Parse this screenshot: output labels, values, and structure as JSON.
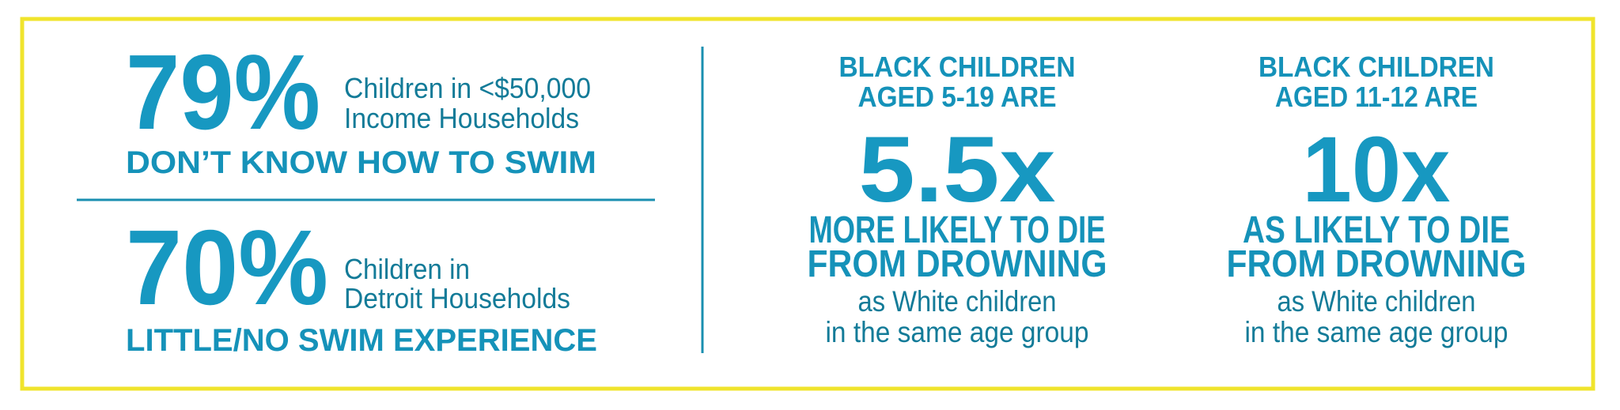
{
  "left": [
    {
      "stat": "79%",
      "description": [
        "Children in <$50,000",
        "Income Households"
      ],
      "caption": "DON’T KNOW HOW TO SWIM"
    },
    {
      "stat": "70%",
      "description": [
        "Children in",
        "Detroit Households"
      ],
      "caption": "LITTLE/NO SWIM EXPERIENCE"
    }
  ],
  "right": [
    {
      "header": [
        "BLACK CHILDREN",
        "AGED 5-19 ARE"
      ],
      "stat": "5.5x",
      "comparison": [
        "MORE LIKELY TO DIE",
        "FROM DROWNING"
      ],
      "note": [
        "as White children",
        "in the same age group"
      ]
    },
    {
      "header": [
        "BLACK CHILDREN",
        "AGED 11-12 ARE"
      ],
      "stat": "10x",
      "comparison": [
        "AS LIKELY TO DIE",
        "FROM DROWNING"
      ],
      "note": [
        "as White children",
        "in the same age group"
      ]
    }
  ]
}
